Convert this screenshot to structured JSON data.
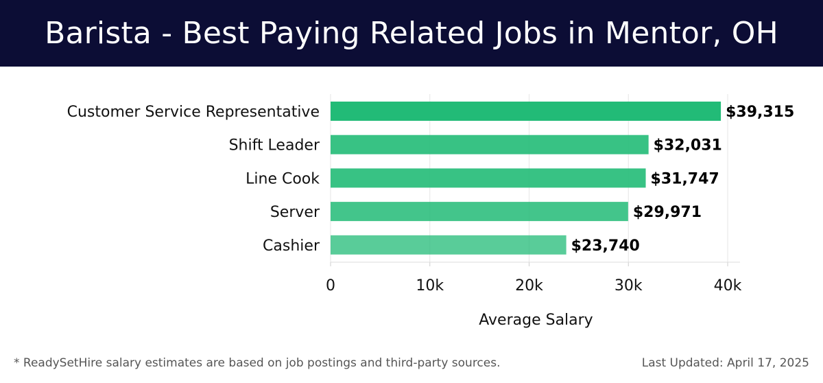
{
  "header": {
    "title": "Barista - Best Paying Related Jobs in Mentor, OH"
  },
  "chart_data": {
    "type": "bar",
    "orientation": "horizontal",
    "categories": [
      "Customer Service Representative",
      "Shift Leader",
      "Line Cook",
      "Server",
      "Cashier"
    ],
    "values": [
      39315,
      32031,
      31747,
      29971,
      23740
    ],
    "value_labels": [
      "$39,315",
      "$32,031",
      "$31,747",
      "$29,971",
      "$23,740"
    ],
    "xlim": [
      0,
      40000
    ],
    "xticks": [
      0,
      10000,
      20000,
      30000,
      40000
    ],
    "xtick_labels": [
      "0",
      "10k",
      "20k",
      "30k",
      "40k"
    ],
    "xlabel": "Average Salary",
    "grid": true,
    "colors": {
      "bar": "#22bb77",
      "grid": "#e6e6e6"
    }
  },
  "footer": {
    "note": "* ReadySetHire salary estimates are based on job postings and third-party sources.",
    "updated": "Last Updated: April 17, 2025"
  }
}
